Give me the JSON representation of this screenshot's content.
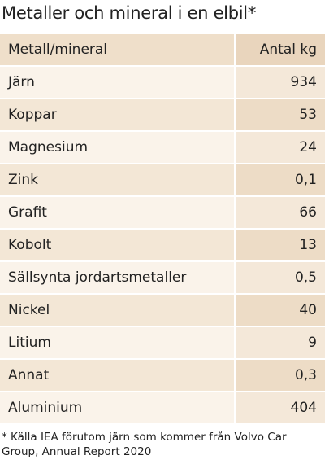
{
  "title": "Metaller och mineral i en elbil*",
  "table": {
    "header": [
      "Metall/mineral",
      "Antal kg"
    ],
    "rows": [
      [
        "Järn",
        "934"
      ],
      [
        "Koppar",
        "53"
      ],
      [
        "Magnesium",
        "24"
      ],
      [
        "Zink",
        "0,1"
      ],
      [
        "Grafit",
        "66"
      ],
      [
        "Kobolt",
        "13"
      ],
      [
        "Sällsynta jordartsmetaller",
        "0,5"
      ],
      [
        "Nickel",
        "40"
      ],
      [
        "Litium",
        "9"
      ],
      [
        "Annat",
        "0,3"
      ],
      [
        "Aluminium",
        "404"
      ]
    ]
  },
  "footnote": "* Källa IEA förutom järn som kommer från Volvo Car Group, Annual Report 2020"
}
